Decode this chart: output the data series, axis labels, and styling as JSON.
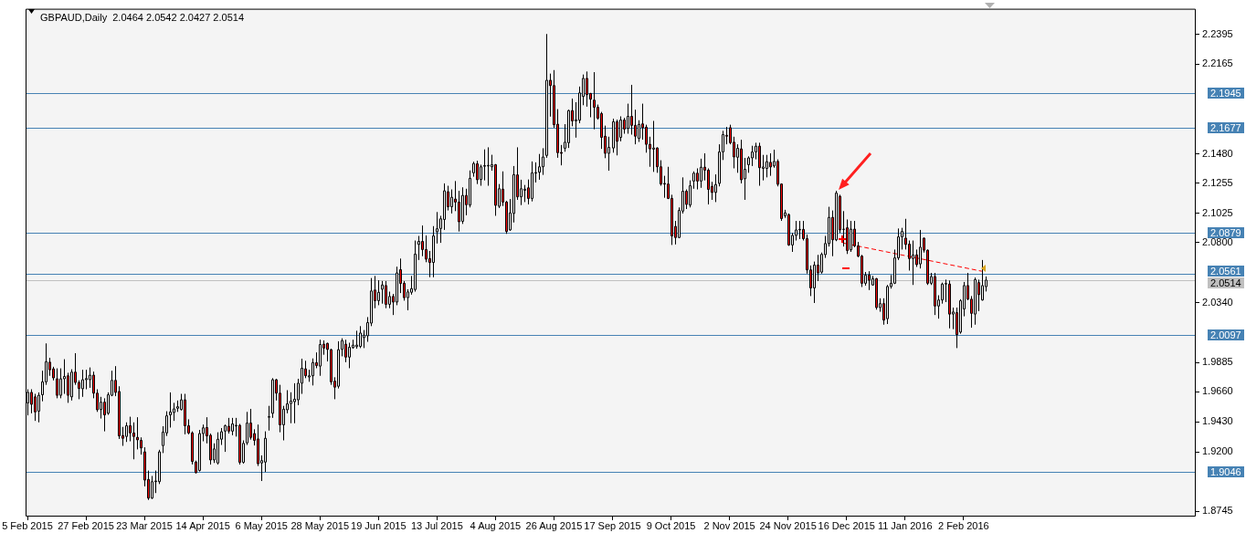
{
  "chart_data": {
    "type": "candlestick",
    "title": "GBPAUD,Daily  2.0464 2.0542 2.0427 2.0514",
    "categories": [
      "5 Feb 2015",
      null,
      null,
      null,
      null,
      null,
      null,
      null,
      null,
      null,
      null,
      null,
      null,
      null,
      null,
      null,
      "27 Feb 2015",
      null,
      null,
      null,
      null,
      null,
      null,
      null,
      null,
      null,
      null,
      null,
      null,
      null,
      null,
      null,
      "23 Mar 2015",
      null,
      null,
      null,
      null,
      null,
      null,
      null,
      null,
      null,
      null,
      null,
      null,
      null,
      null,
      null,
      "14 Apr 2015",
      null,
      null,
      null,
      null,
      null,
      null,
      null,
      null,
      null,
      null,
      null,
      null,
      null,
      null,
      null,
      "6 May 2015",
      null,
      null,
      null,
      null,
      null,
      null,
      null,
      null,
      null,
      null,
      null,
      null,
      null,
      null,
      null,
      "28 May 2015",
      null,
      null,
      null,
      null,
      null,
      null,
      null,
      null,
      null,
      null,
      null,
      null,
      null,
      null,
      null,
      "19 Jun 2015",
      null,
      null,
      null,
      null,
      null,
      null,
      null,
      null,
      null,
      null,
      null,
      null,
      null,
      null,
      null,
      "13 Jul 2015",
      null,
      null,
      null,
      null,
      null,
      null,
      null,
      null,
      null,
      null,
      null,
      null,
      null,
      null,
      null,
      "4 Aug 2015",
      null,
      null,
      null,
      null,
      null,
      null,
      null,
      null,
      null,
      null,
      null,
      null,
      null,
      null,
      null,
      "26 Aug 2015",
      null,
      null,
      null,
      null,
      null,
      null,
      null,
      null,
      null,
      null,
      null,
      null,
      null,
      null,
      null,
      "17 Sep 2015",
      null,
      null,
      null,
      null,
      null,
      null,
      null,
      null,
      null,
      null,
      null,
      null,
      null,
      null,
      null,
      "9 Oct 2015",
      null,
      null,
      null,
      null,
      null,
      null,
      null,
      null,
      null,
      null,
      null,
      null,
      null,
      null,
      null,
      "2 Nov 2015",
      null,
      null,
      null,
      null,
      null,
      null,
      null,
      null,
      null,
      null,
      null,
      null,
      null,
      null,
      null,
      "24 Nov 2015",
      null,
      null,
      null,
      null,
      null,
      null,
      null,
      null,
      null,
      null,
      null,
      null,
      null,
      null,
      null,
      "16 Dec 2015",
      null,
      null,
      null,
      null,
      null,
      null,
      null,
      null,
      null,
      null,
      null,
      null,
      null,
      null,
      null,
      "11 Jan 2016",
      null,
      null,
      null,
      null,
      null,
      null,
      null,
      null,
      null,
      null,
      null,
      null,
      null,
      null,
      null,
      "2 Feb 2016",
      null,
      null,
      null,
      null,
      null,
      null,
      null,
      null,
      null,
      null,
      null,
      null,
      null,
      null,
      null,
      null,
      null,
      null,
      null,
      null,
      null,
      null,
      null,
      null,
      null,
      null,
      null,
      null,
      null,
      null,
      null,
      null,
      null,
      null,
      null,
      null,
      null,
      null,
      null,
      null,
      null,
      null,
      null,
      null,
      null,
      null,
      null,
      null,
      null,
      null,
      null,
      null,
      null,
      null,
      null,
      null,
      null,
      null,
      null,
      null,
      null,
      null,
      null
    ],
    "ohlc": [
      [
        1.9575,
        1.9679,
        1.9479,
        1.9655
      ],
      [
        1.9655,
        1.9679,
        1.9495,
        1.9564
      ],
      [
        1.9621,
        1.9644,
        1.9437,
        1.9506
      ],
      [
        1.9511,
        1.9655,
        1.9426,
        1.9633
      ],
      [
        1.9637,
        1.9821,
        1.9587,
        1.9736
      ],
      [
        1.9736,
        2.003,
        1.9713,
        1.989
      ],
      [
        1.9886,
        1.992,
        1.9782,
        1.9828
      ],
      [
        1.9835,
        1.9851,
        1.9747,
        1.9766
      ],
      [
        1.9759,
        1.9839,
        1.961,
        1.9633
      ],
      [
        1.9633,
        1.9839,
        1.961,
        1.9759
      ],
      [
        1.9759,
        1.9909,
        1.9644,
        1.9777
      ],
      [
        1.9782,
        1.9805,
        1.9575,
        1.9633
      ],
      [
        1.9621,
        1.9832,
        1.9593,
        1.981
      ],
      [
        1.981,
        1.9955,
        1.9713,
        1.9731
      ],
      [
        1.9731,
        1.9747,
        1.9603,
        1.9685
      ],
      [
        1.9683,
        1.9828,
        1.9621,
        1.9752
      ],
      [
        1.9752,
        1.9828,
        1.9679,
        1.9761
      ],
      [
        1.9752,
        1.9846,
        1.969,
        1.9787
      ],
      [
        1.9787,
        1.9814,
        1.961,
        1.9649
      ],
      [
        1.9649,
        1.9679,
        1.9506,
        1.9522
      ],
      [
        1.9524,
        1.9621,
        1.9455,
        1.958
      ],
      [
        1.958,
        1.961,
        1.9357,
        1.9483
      ],
      [
        1.9495,
        1.9655,
        1.9483,
        1.9637
      ],
      [
        1.9633,
        1.9821,
        1.9626,
        1.9747
      ],
      [
        1.9747,
        1.9856,
        1.9626,
        1.9655
      ],
      [
        1.9662,
        1.9702,
        1.9299,
        1.9322
      ],
      [
        1.9325,
        1.9391,
        1.9246,
        1.9304
      ],
      [
        1.9318,
        1.9426,
        1.9276,
        1.94
      ],
      [
        1.94,
        1.9469,
        1.9281,
        1.9345
      ],
      [
        1.9345,
        1.9426,
        1.9143,
        1.9318
      ],
      [
        1.9311,
        1.9465,
        1.9219,
        1.9292
      ],
      [
        1.9288,
        1.9311,
        1.9179,
        1.923
      ],
      [
        1.92,
        1.9235,
        1.8936,
        1.8984
      ],
      [
        1.8989,
        1.9057,
        1.8832,
        1.8846
      ],
      [
        1.8846,
        1.9016,
        1.884,
        1.8972
      ],
      [
        1.8972,
        1.9057,
        1.8885,
        1.8977
      ],
      [
        1.8972,
        1.9216,
        1.8954,
        1.92
      ],
      [
        1.9248,
        1.9396,
        1.9191,
        1.9352
      ],
      [
        1.9345,
        1.9511,
        1.9322,
        1.9476
      ],
      [
        1.9483,
        1.9655,
        1.9386,
        1.9506
      ],
      [
        1.9501,
        1.9575,
        1.9437,
        1.9529
      ],
      [
        1.9534,
        1.9593,
        1.9506,
        1.9545
      ],
      [
        1.9524,
        1.9644,
        1.9517,
        1.9598
      ],
      [
        1.9598,
        1.9644,
        1.9334,
        1.94
      ],
      [
        1.94,
        1.9449,
        1.9334,
        1.9345
      ],
      [
        1.9345,
        1.9357,
        1.9104,
        1.9127
      ],
      [
        1.9122,
        1.9133,
        1.9035,
        1.9041
      ],
      [
        1.9058,
        1.9368,
        1.905,
        1.934
      ],
      [
        1.934,
        1.9409,
        1.9281,
        1.9384
      ],
      [
        1.9386,
        1.9465,
        1.9265,
        1.9322
      ],
      [
        1.9327,
        1.934,
        1.9103,
        1.9138
      ],
      [
        1.9138,
        1.9265,
        1.9115,
        1.9223
      ],
      [
        1.9115,
        1.935,
        1.9103,
        1.9297
      ],
      [
        1.9297,
        1.9382,
        1.9253,
        1.9354
      ],
      [
        1.9359,
        1.9409,
        1.92,
        1.94
      ],
      [
        1.9396,
        1.946,
        1.934,
        1.9359
      ],
      [
        1.9359,
        1.946,
        1.9327,
        1.9414
      ],
      [
        1.9398,
        1.946,
        1.9317,
        1.9403
      ],
      [
        1.9403,
        1.9414,
        1.9103,
        1.912
      ],
      [
        1.912,
        1.9288,
        1.911,
        1.9265
      ],
      [
        1.9269,
        1.9506,
        1.9253,
        1.9421
      ],
      [
        1.9421,
        1.9529,
        1.9294,
        1.9311
      ],
      [
        1.934,
        1.9373,
        1.9249,
        1.9288
      ],
      [
        1.9299,
        1.9409,
        1.9092,
        1.911
      ],
      [
        1.9115,
        1.9173,
        1.8977,
        1.9133
      ],
      [
        1.9122,
        1.9357,
        1.9046,
        1.9304
      ],
      [
        1.9465,
        1.9552,
        1.9363,
        1.9469
      ],
      [
        1.9495,
        1.9764,
        1.946,
        1.9752
      ],
      [
        1.9752,
        1.9759,
        1.9593,
        1.9649
      ],
      [
        1.9649,
        1.9713,
        1.935,
        1.9407
      ],
      [
        1.9407,
        1.9552,
        1.9288,
        1.9527
      ],
      [
        1.9522,
        1.9672,
        1.9495,
        1.9568
      ],
      [
        1.957,
        1.9656,
        1.9419,
        1.9589
      ],
      [
        1.9584,
        1.9725,
        1.9419,
        1.9603
      ],
      [
        1.9598,
        1.9759,
        1.9557,
        1.9725
      ],
      [
        1.9725,
        1.9913,
        1.9644,
        1.984
      ],
      [
        1.9835,
        1.9897,
        1.9764,
        1.9782
      ],
      [
        1.9773,
        1.9828,
        1.9736,
        1.9782
      ],
      [
        1.9782,
        1.9915,
        1.9708,
        1.9883
      ],
      [
        1.9883,
        1.9961,
        1.984,
        1.986
      ],
      [
        1.9856,
        2.0058,
        1.9782,
        2.0021
      ],
      [
        2.0024,
        2.0053,
        1.9943,
        1.9994
      ],
      [
        2.003,
        2.0035,
        1.9892,
        1.9984
      ],
      [
        1.9982,
        1.9989,
        1.9713,
        1.9736
      ],
      [
        1.9741,
        1.9771,
        1.9603,
        1.9695
      ],
      [
        1.9702,
        2.0046,
        1.9685,
        1.9982
      ],
      [
        1.9984,
        2.0069,
        1.9931,
        2.0051
      ],
      [
        2.0024,
        2.0058,
        1.9886,
        1.9925
      ],
      [
        1.9925,
        2.0035,
        1.984,
        2.0001
      ],
      [
        1.9998,
        2.0058,
        1.9989,
        2.0017
      ],
      [
        2.0005,
        2.0127,
        1.9989,
        2.0017
      ],
      [
        2.0007,
        2.0162,
        1.9994,
        2.0109
      ],
      [
        2.0074,
        2.0132,
        1.9994,
        2.0093
      ],
      [
        2.0088,
        2.0231,
        2.0042,
        2.0189
      ],
      [
        2.0185,
        2.053,
        2.0162,
        2.0431
      ],
      [
        2.0438,
        2.0546,
        2.0299,
        2.0357
      ],
      [
        2.0357,
        2.0513,
        2.0322,
        2.0421
      ],
      [
        2.0444,
        2.0507,
        2.0334,
        2.0477
      ],
      [
        2.0472,
        2.0507,
        2.0299,
        2.0329
      ],
      [
        2.0329,
        2.0426,
        2.0299,
        2.0389
      ],
      [
        2.0389,
        2.0408,
        2.0247,
        2.0346
      ],
      [
        2.0346,
        2.0617,
        2.0322,
        2.0569
      ],
      [
        2.0594,
        2.0679,
        2.0415,
        2.0488
      ],
      [
        2.049,
        2.0507,
        2.0357,
        2.038
      ],
      [
        2.038,
        2.0444,
        2.0283,
        2.0424
      ],
      [
        2.0421,
        2.0546,
        2.0403,
        2.0449
      ],
      [
        2.0442,
        2.0817,
        2.0426,
        2.0713
      ],
      [
        2.0787,
        2.0852,
        2.0668,
        2.081
      ],
      [
        2.081,
        2.0932,
        2.0697,
        2.0748
      ],
      [
        2.0748,
        2.0856,
        2.0651,
        2.0674
      ],
      [
        2.0679,
        2.0737,
        2.0536,
        2.0649
      ],
      [
        2.0649,
        2.0927,
        2.0536,
        2.0852
      ],
      [
        2.0884,
        2.1035,
        2.0794,
        2.0907
      ],
      [
        2.0909,
        2.1006,
        2.0799,
        2.0983
      ],
      [
        2.0978,
        2.1254,
        2.0898,
        2.1197
      ],
      [
        2.119,
        2.1236,
        2.1047,
        2.1075
      ],
      [
        2.1075,
        2.1208,
        2.1024,
        2.1148
      ],
      [
        2.1134,
        2.1272,
        2.1042,
        2.1111
      ],
      [
        2.1111,
        2.1197,
        2.0886,
        2.096
      ],
      [
        2.0964,
        2.1224,
        2.0944,
        2.1162
      ],
      [
        2.1162,
        2.1213,
        2.101,
        2.1091
      ],
      [
        2.1088,
        2.1353,
        2.107,
        2.1293
      ],
      [
        2.1335,
        2.142,
        2.1305,
        2.1406
      ],
      [
        2.1404,
        2.1427,
        2.1249,
        2.1282
      ],
      [
        2.1284,
        2.1397,
        2.1236,
        2.1381
      ],
      [
        2.1385,
        2.1514,
        2.1277,
        2.139
      ],
      [
        2.1387,
        2.153,
        2.1236,
        2.1392
      ],
      [
        2.1381,
        2.1473,
        2.1351,
        2.1397
      ],
      [
        2.1397,
        2.1402,
        2.1006,
        2.1086
      ],
      [
        2.1079,
        2.1249,
        2.1065,
        2.1213
      ],
      [
        2.121,
        2.1346,
        2.1081,
        2.1111
      ],
      [
        2.1111,
        2.1121,
        2.0868,
        2.0886
      ],
      [
        2.0898,
        2.1134,
        2.0891,
        2.1029
      ],
      [
        2.1024,
        2.1387,
        2.0955,
        2.1321
      ],
      [
        2.1319,
        2.153,
        2.1128,
        2.1151
      ],
      [
        2.1151,
        2.1282,
        2.1088,
        2.1213
      ],
      [
        2.1201,
        2.1242,
        2.1111,
        2.121
      ],
      [
        2.122,
        2.1284,
        2.1093,
        2.1139
      ],
      [
        2.1139,
        2.1422,
        2.1116,
        2.1335
      ],
      [
        2.1332,
        2.1415,
        2.1261,
        2.1337
      ],
      [
        2.1339,
        2.1479,
        2.1282,
        2.1381
      ],
      [
        2.1381,
        2.1523,
        2.1319,
        2.1456
      ],
      [
        2.1468,
        2.2397,
        2.145,
        2.2043
      ],
      [
        2.2043,
        2.2094,
        2.1765,
        2.2002
      ],
      [
        2.2002,
        2.2121,
        2.168,
        2.1703
      ],
      [
        2.1707,
        2.1822,
        2.145,
        2.1489
      ],
      [
        2.1491,
        2.1548,
        2.1392,
        2.1484
      ],
      [
        2.1523,
        2.1707,
        2.1496,
        2.1569
      ],
      [
        2.1565,
        2.1818,
        2.1525,
        2.1811
      ],
      [
        2.1811,
        2.1903,
        2.1691,
        2.1732
      ],
      [
        2.1732,
        2.1875,
        2.1604,
        2.1742
      ],
      [
        2.1737,
        2.1995,
        2.1714,
        2.1946
      ],
      [
        2.1919,
        2.2087,
        2.1852,
        2.2057
      ],
      [
        2.2057,
        2.211,
        2.1841,
        2.1933
      ],
      [
        2.1942,
        2.1946,
        2.176,
        2.1898
      ],
      [
        2.1891,
        2.2105,
        2.1668,
        2.1836
      ],
      [
        2.1836,
        2.1857,
        2.1742,
        2.1753
      ],
      [
        2.1788,
        2.1801,
        2.1518,
        2.1606
      ],
      [
        2.1615,
        2.1696,
        2.1447,
        2.1484
      ],
      [
        2.1484,
        2.1611,
        2.1351,
        2.153
      ],
      [
        2.1525,
        2.1749,
        2.1489,
        2.1726
      ],
      [
        2.1726,
        2.1742,
        2.1468,
        2.1576
      ],
      [
        2.1606,
        2.1767,
        2.1576,
        2.1739
      ],
      [
        2.1739,
        2.1755,
        2.1634,
        2.167
      ],
      [
        2.1675,
        2.1864,
        2.1634,
        2.1767
      ],
      [
        2.1767,
        2.2008,
        2.1627,
        2.1698
      ],
      [
        2.1698,
        2.1818,
        2.1553,
        2.1615
      ],
      [
        2.1599,
        2.1737,
        2.1571,
        2.1705
      ],
      [
        2.1709,
        2.1864,
        2.1588,
        2.168
      ],
      [
        2.1684,
        2.1703,
        2.1489,
        2.1553
      ],
      [
        2.1553,
        2.1611,
        2.1381,
        2.1518
      ],
      [
        2.1516,
        2.1732,
        2.1342,
        2.1525
      ],
      [
        2.1525,
        2.153,
        2.1335,
        2.1381
      ],
      [
        2.1381,
        2.1431,
        2.1236,
        2.1249
      ],
      [
        2.1254,
        2.1312,
        2.1144,
        2.1249
      ],
      [
        2.1249,
        2.1381,
        2.1134,
        2.1139
      ],
      [
        2.1139,
        2.1167,
        2.0783,
        2.0852
      ],
      [
        2.0925,
        2.0967,
        2.0787,
        2.084
      ],
      [
        2.084,
        2.107,
        2.0835,
        2.1047
      ],
      [
        2.1042,
        2.13,
        2.1024,
        2.1194
      ],
      [
        2.1194,
        2.1208,
        2.1058,
        2.1093
      ],
      [
        2.1088,
        2.1277,
        2.107,
        2.1236
      ],
      [
        2.1272,
        2.1346,
        2.1213,
        2.1332
      ],
      [
        2.1332,
        2.1369,
        2.1208,
        2.1272
      ],
      [
        2.1272,
        2.1443,
        2.122,
        2.1378
      ],
      [
        2.1378,
        2.1484,
        2.1277,
        2.1355
      ],
      [
        2.1355,
        2.1369,
        2.1093,
        2.1208
      ],
      [
        2.1231,
        2.1266,
        2.1128,
        2.1185
      ],
      [
        2.1185,
        2.1323,
        2.1111,
        2.1245
      ],
      [
        2.1254,
        2.1553,
        2.1231,
        2.1495
      ],
      [
        2.1495,
        2.1656,
        2.1433,
        2.1627
      ],
      [
        2.1622,
        2.1686,
        2.1553,
        2.1615
      ],
      [
        2.168,
        2.1703,
        2.1553,
        2.1565
      ],
      [
        2.1569,
        2.1611,
        2.1369,
        2.1456
      ],
      [
        2.1454,
        2.1553,
        2.1335,
        2.1523
      ],
      [
        2.1518,
        2.1588,
        2.1254,
        2.1282
      ],
      [
        2.1289,
        2.1449,
        2.1128,
        2.1362
      ],
      [
        2.1397,
        2.1461,
        2.1335,
        2.1449
      ],
      [
        2.1449,
        2.1542,
        2.1387,
        2.1495
      ],
      [
        2.1495,
        2.1565,
        2.1438,
        2.1539
      ],
      [
        2.1539,
        2.1565,
        2.1236,
        2.1374
      ],
      [
        2.1369,
        2.1472,
        2.1277,
        2.138
      ],
      [
        2.1369,
        2.1472,
        2.13,
        2.142
      ],
      [
        2.1415,
        2.1484,
        2.1312,
        2.138
      ],
      [
        2.1387,
        2.1512,
        2.1374,
        2.1422
      ],
      [
        2.1422,
        2.1438,
        2.1231,
        2.1247
      ],
      [
        2.1249,
        2.1254,
        2.0967,
        2.0985
      ],
      [
        2.1006,
        2.1052,
        2.099,
        2.1029
      ],
      [
        2.1015,
        2.1024,
        2.0776,
        2.0783
      ],
      [
        2.0783,
        2.0875,
        2.073,
        2.0856
      ],
      [
        2.0856,
        2.0967,
        2.0817,
        2.0898
      ],
      [
        2.0898,
        2.0967,
        2.0828,
        2.0902
      ],
      [
        2.0902,
        2.0967,
        2.0817,
        2.0831
      ],
      [
        2.0831,
        2.0863,
        2.0564,
        2.0592
      ],
      [
        2.0592,
        2.0626,
        2.0392,
        2.0454
      ],
      [
        2.0454,
        2.0656,
        2.0339,
        2.0629
      ],
      [
        2.0629,
        2.0707,
        2.0507,
        2.0569
      ],
      [
        2.0575,
        2.0725,
        2.0564,
        2.0711
      ],
      [
        2.0709,
        2.0852,
        2.0684,
        2.0794
      ],
      [
        2.0794,
        2.1075,
        2.0771,
        2.0994
      ],
      [
        2.0994,
        2.1047,
        2.0697,
        2.0822
      ],
      [
        2.0822,
        2.1197,
        2.0812,
        2.118
      ],
      [
        2.1155,
        2.1167,
        2.0875,
        2.0898
      ],
      [
        2.0902,
        2.1042,
        2.0771,
        2.0904
      ],
      [
        2.0914,
        2.0978,
        2.0714,
        2.0741
      ],
      [
        2.0746,
        2.0967,
        2.073,
        2.0904
      ],
      [
        2.0904,
        2.0967,
        2.0766,
        2.0776
      ],
      [
        2.0776,
        2.0806,
        2.069,
        2.0697
      ],
      [
        2.0697,
        2.0707,
        2.0461,
        2.049
      ],
      [
        2.049,
        2.0576,
        2.0472,
        2.0553
      ],
      [
        2.0553,
        2.0582,
        2.0438,
        2.0513
      ],
      [
        2.0477,
        2.0546,
        2.0472,
        2.0525
      ],
      [
        2.0525,
        2.053,
        2.0288,
        2.0304
      ],
      [
        2.0304,
        2.0375,
        2.0272,
        2.0334
      ],
      [
        2.0334,
        2.0375,
        2.0173,
        2.0208
      ],
      [
        2.0219,
        2.0477,
        2.0178,
        2.0465
      ],
      [
        2.0465,
        2.0553,
        2.0449,
        2.049
      ],
      [
        2.049,
        2.0748,
        2.0484,
        2.0684
      ],
      [
        2.0684,
        2.0909,
        2.0668,
        2.0845
      ],
      [
        2.0845,
        2.0914,
        2.0748,
        2.0886
      ],
      [
        2.0835,
        2.0983,
        2.0748,
        2.0787
      ],
      [
        2.0789,
        2.0817,
        2.0587,
        2.0679
      ],
      [
        2.0679,
        2.0817,
        2.0477,
        2.0707
      ],
      [
        2.0707,
        2.0748,
        2.0615,
        2.0633
      ],
      [
        2.0638,
        2.0898,
        2.0603,
        2.0766
      ],
      [
        2.0835,
        2.084,
        2.0725,
        2.0743
      ],
      [
        2.0743,
        2.0748,
        2.0477,
        2.049
      ],
      [
        2.049,
        2.0569,
        2.0477,
        2.0541
      ],
      [
        2.0541,
        2.0569,
        2.0247,
        2.0316
      ],
      [
        2.0316,
        2.0398,
        2.0219,
        2.0362
      ],
      [
        2.0362,
        2.0495,
        2.0334,
        2.0484
      ],
      [
        2.0484,
        2.0518,
        2.0346,
        2.0488
      ],
      [
        2.0484,
        2.0511,
        2.0145,
        2.0254
      ],
      [
        2.0254,
        2.0304,
        2.0139,
        2.027
      ],
      [
        2.0265,
        2.0304,
        1.9994,
        2.0097
      ],
      [
        2.0116,
        2.0368,
        2.0104,
        2.0357
      ],
      [
        2.0293,
        2.05,
        2.0237,
        2.0472
      ],
      [
        2.0472,
        2.0569,
        2.0362,
        2.0368
      ],
      [
        2.0368,
        2.0392,
        2.015,
        2.026
      ],
      [
        2.0254,
        2.0534,
        2.0173,
        2.0518
      ],
      [
        2.0495,
        2.0518,
        2.0277,
        2.0403
      ],
      [
        2.0362,
        2.0668,
        2.0357,
        2.0472
      ],
      [
        2.0464,
        2.0542,
        2.0427,
        2.0514
      ],
      null,
      null,
      null,
      null,
      null,
      null,
      null,
      null,
      null,
      null,
      null,
      null,
      null,
      null,
      null,
      null,
      null,
      null,
      null,
      null,
      null,
      null,
      null,
      null,
      null,
      null,
      null,
      null,
      null,
      null,
      null,
      null,
      null,
      null,
      null,
      null,
      null,
      null,
      null,
      null,
      null,
      null,
      null,
      null,
      null,
      null,
      null,
      null,
      null,
      null,
      null,
      null,
      null,
      null,
      null,
      null,
      null
    ],
    "colors": [
      "#ffffff",
      "#ff0000",
      "#ff0000",
      "#ffffff",
      "#ffffff",
      "#ffffff",
      "#ff0000",
      "#ff0000",
      "#ff0000",
      "#ffffff",
      "#ffffff",
      "#ff0000",
      "#ffffff",
      "#ff0000",
      "#ff0000",
      "#ffffff",
      "#ffffff",
      "#ffffff",
      "#ff0000",
      "#ff0000",
      "#ffffff",
      "#ff0000",
      "#ffffff",
      "#ffffff",
      "#ff0000",
      "#ff0000",
      "#ff0000",
      "#ffffff",
      "#ff0000",
      "#ff0000",
      "#ff0000",
      "#ff0000",
      "#ff0000",
      "#ff0000",
      "#ffffff",
      "#ffffff",
      "#ffffff",
      "#ffffff",
      "#ffffff",
      "#ffffff",
      "#ffffff",
      "#ffffff",
      "#ffffff",
      "#ff0000",
      "#ff0000",
      "#ff0000",
      "#ff0000",
      "#ffffff",
      "#ffffff",
      "#ff0000",
      "#ff0000",
      "#ffffff",
      "#ffffff",
      "#ffffff",
      "#ffffff",
      "#ff0000",
      "#ffffff",
      "#ffffff",
      "#ff0000",
      "#ffffff",
      "#ffffff",
      "#ff0000",
      "#ff0000",
      "#ff0000",
      "#ffffff",
      "#ffffff",
      "#ffffff",
      "#ffffff",
      "#ff0000",
      "#ff0000",
      "#ffffff",
      "#ffffff",
      "#ffffff",
      "#ffffff",
      "#ffffff",
      "#ffffff",
      "#ff0000",
      "#ffffff",
      "#ffffff",
      "#ff0000",
      "#ffffff",
      "#ff0000",
      "#ff0000",
      "#ff0000",
      "#ff0000",
      "#ffffff",
      "#ffffff",
      "#ff0000",
      "#ffffff",
      "#ffffff",
      "#ffffff",
      "#ffffff",
      "#ffffff",
      "#ffffff",
      "#ffffff",
      "#ff0000",
      "#ffffff",
      "#ffffff",
      "#ff0000",
      "#ffffff",
      "#ff0000",
      "#ffffff",
      "#ff0000",
      "#ff0000",
      "#ffffff",
      "#ffffff",
      "#ffffff",
      "#ffffff",
      "#ff0000",
      "#ff0000",
      "#ff0000",
      "#ffffff",
      "#ffffff",
      "#ffffff",
      "#ffffff",
      "#ff0000",
      "#ffffff",
      "#ff0000",
      "#ff0000",
      "#ffffff",
      "#ff0000",
      "#ffffff",
      "#ffffff",
      "#ff0000",
      "#ffffff",
      "#ffffff",
      "#ffffff",
      "#ffffff",
      "#ff0000",
      "#ffffff",
      "#ff0000",
      "#ff0000",
      "#ffffff",
      "#ffffff",
      "#ff0000",
      "#ffffff",
      "#ffffff",
      "#ff0000",
      "#ffffff",
      "#ffffff",
      "#ffffff",
      "#ffffff",
      "#ffffff",
      "#ff0000",
      "#ff0000",
      "#ff0000",
      "#ff0000",
      "#ffffff",
      "#ffffff",
      "#ff0000",
      "#ffffff",
      "#ffffff",
      "#ffffff",
      "#ff0000",
      "#ff0000",
      "#ff0000",
      "#ff0000",
      "#ff0000",
      "#ff0000",
      "#ffffff",
      "#ffffff",
      "#ff0000",
      "#ffffff",
      "#ff0000",
      "#ffffff",
      "#ff0000",
      "#ff0000",
      "#ffffff",
      "#ff0000",
      "#ff0000",
      "#ff0000",
      "#ffffff",
      "#ff0000",
      "#ff0000",
      "#ff0000",
      "#ff0000",
      "#ff0000",
      "#ff0000",
      "#ffffff",
      "#ffffff",
      "#ff0000",
      "#ffffff",
      "#ffffff",
      "#ff0000",
      "#ffffff",
      "#ff0000",
      "#ff0000",
      "#ff0000",
      "#ffffff",
      "#ffffff",
      "#ffffff",
      "#ff0000",
      "#ff0000",
      "#ff0000",
      "#ffffff",
      "#ff0000",
      "#ffffff",
      "#ffffff",
      "#ffffff",
      "#ffffff",
      "#ff0000",
      "#ffffff",
      "#ffffff",
      "#ff0000",
      "#ffffff",
      "#ff0000",
      "#ff0000",
      "#ffffff",
      "#ff0000",
      "#ffffff",
      "#ffffff",
      "#ffffff",
      "#ff0000",
      "#ff0000",
      "#ff0000",
      "#ffffff",
      "#ff0000",
      "#ffffff",
      "#ffffff",
      "#ffffff",
      "#ff0000",
      "#ffffff",
      "#ff0000",
      "#ffffff",
      "#ff0000",
      "#ffffff",
      "#ff0000",
      "#ff0000",
      "#ff0000",
      "#ffffff",
      "#ff0000",
      "#ffffff",
      "#ff0000",
      "#ffffff",
      "#ff0000",
      "#ffffff",
      "#ffffff",
      "#ffffff",
      "#ffffff",
      "#ffffff",
      "#ff0000",
      "#ff0000",
      "#ffffff",
      "#ff0000",
      "#ffffff",
      "#ff0000",
      "#ff0000",
      "#ffffff",
      "#ff0000",
      "#ffffff",
      "#ffffff",
      "#ffffff",
      "#ff0000",
      "#ffffff",
      "#ff0000",
      "#ffffff",
      "#ffffff",
      "#ff0000",
      "#ff0000",
      "#ffffff",
      "#ff0000",
      "#ffffff",
      "#ffffff",
      null,
      null,
      null,
      null,
      null,
      null,
      null,
      null,
      null,
      null,
      null,
      null,
      null,
      null,
      null,
      null,
      null,
      null,
      null,
      null,
      null,
      null,
      null,
      null,
      null,
      null,
      null,
      null,
      null,
      null,
      null,
      null,
      null,
      null,
      null,
      null,
      null,
      null,
      null,
      null,
      null,
      null,
      null,
      null,
      null,
      null,
      null,
      null,
      null,
      null,
      null,
      null,
      null,
      null,
      null,
      null,
      null
    ],
    "series": [
      {
        "type": "line",
        "color": "#ff0000",
        "line_style": "dashed",
        "values": [
          null,
          null,
          null,
          null,
          null,
          null,
          null,
          null,
          null,
          null,
          null,
          null,
          null,
          null,
          null,
          null,
          null,
          null,
          null,
          null,
          null,
          null,
          null,
          null,
          null,
          null,
          null,
          null,
          null,
          null,
          null,
          null,
          null,
          null,
          null,
          null,
          null,
          null,
          null,
          null,
          null,
          null,
          null,
          null,
          null,
          null,
          null,
          null,
          null,
          null,
          null,
          null,
          null,
          null,
          null,
          null,
          null,
          null,
          null,
          null,
          null,
          null,
          null,
          null,
          null,
          null,
          null,
          null,
          null,
          null,
          null,
          null,
          null,
          null,
          null,
          null,
          null,
          null,
          null,
          null,
          null,
          null,
          null,
          null,
          null,
          null,
          null,
          null,
          null,
          null,
          null,
          null,
          null,
          null,
          null,
          null,
          null,
          null,
          null,
          null,
          null,
          null,
          null,
          null,
          null,
          null,
          null,
          null,
          null,
          null,
          null,
          null,
          null,
          null,
          null,
          null,
          null,
          null,
          null,
          null,
          null,
          null,
          null,
          null,
          null,
          null,
          null,
          null,
          null,
          null,
          null,
          null,
          null,
          null,
          null,
          null,
          null,
          null,
          null,
          null,
          null,
          null,
          null,
          null,
          null,
          null,
          null,
          null,
          null,
          null,
          null,
          null,
          null,
          null,
          null,
          null,
          null,
          null,
          null,
          null,
          null,
          null,
          null,
          null,
          null,
          null,
          null,
          null,
          null,
          null,
          null,
          null,
          null,
          null,
          null,
          null,
          null,
          null,
          null,
          null,
          null,
          null,
          null,
          null,
          null,
          null,
          null,
          null,
          null,
          null,
          null,
          null,
          null,
          null,
          null,
          null,
          null,
          null,
          null,
          null,
          null,
          null,
          null,
          null,
          null,
          null,
          null,
          null,
          null,
          null,
          null,
          null,
          null,
          null,
          null,
          null,
          null,
          null,
          null,
          null,
          null,
          null,
          null,
          2.0798,
          null,
          null,
          null,
          null,
          null,
          null,
          null,
          null,
          null,
          null,
          null,
          null,
          null,
          null,
          null,
          null,
          null,
          null,
          null,
          null,
          null,
          null,
          null,
          null,
          null,
          null,
          null,
          null,
          null,
          null,
          null,
          null,
          null,
          null,
          null,
          null,
          null,
          2.0582,
          null,
          null,
          null,
          null,
          null,
          null,
          null,
          null,
          null,
          null,
          null,
          null,
          null,
          null,
          null,
          null,
          null,
          null,
          null,
          null,
          null,
          null,
          null,
          null,
          null,
          null,
          null,
          null,
          null,
          null,
          null,
          null,
          null,
          null,
          null,
          null,
          null,
          null,
          null,
          null,
          null,
          null,
          null,
          null,
          null,
          null,
          null,
          null,
          null,
          null,
          null,
          null,
          null,
          null,
          null,
          null,
          null,
          null
        ]
      }
    ],
    "ylim": [
      1.8705,
      2.259
    ],
    "yticks": [
      2.2395,
      2.2165,
      {
        "value": 2.148,
        "label": "2.1480"
      },
      2.1255,
      2.1025,
      {
        "value": 2.08,
        "label": "2.0800"
      },
      {
        "value": 2.034,
        "label": "2.0340"
      },
      1.9885,
      {
        "value": 1.966,
        "label": "1.9660"
      },
      {
        "value": 1.943,
        "label": "1.9430"
      },
      {
        "value": 1.92,
        "label": "1.9200"
      },
      1.8745
    ],
    "ref_lines": [
      {
        "axis": "y",
        "value": 2.1945,
        "label": "2.1945",
        "color": "#4682b4"
      },
      {
        "axis": "y",
        "value": 2.1677,
        "label": "2.1677",
        "color": "#4682b4"
      },
      {
        "axis": "y",
        "value": 2.0879,
        "label": "2.0879",
        "color": "#4682b4"
      },
      {
        "axis": "y",
        "value": 2.0561,
        "label": "2.0561",
        "color": "#4682b4"
      },
      {
        "axis": "y",
        "value": 2.0514,
        "label": "2.0514",
        "color": "#c0c0c0"
      },
      {
        "axis": "y",
        "value": 2.0097,
        "label": "2.0097",
        "color": "#4682b4"
      },
      {
        "axis": "y",
        "value": 1.9046,
        "label": "1.9046",
        "color": "#4682b4"
      }
    ]
  }
}
